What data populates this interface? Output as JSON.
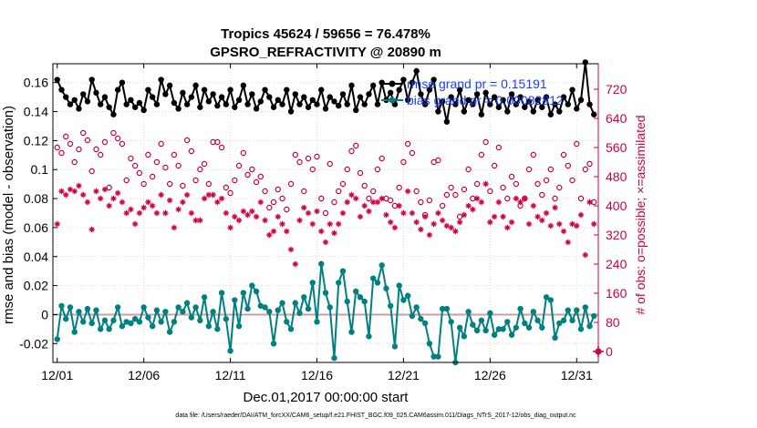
{
  "chart_data": {
    "type": "line",
    "title_line1": "Tropics 45624 / 59656 = 76.478%",
    "title_line2": "GPSRO_REFRACTIVITY @ 20890 m",
    "xlabel": "Dec.01,2017 00:00:00 start",
    "ylabel_left": "rmse and bias (model - observation)",
    "ylabel_right": "# of obs: o=possible; ×=assimilated",
    "footer": "data file: /Users/raeder/DAI/ATM_forcXX/CAM6_setup/f.e21.FHIST_BGC.f09_025.CAM6assim.011/Diags_NTrS_2017-12/obs_diag_output.nc",
    "x_tick_labels": [
      "12/01",
      "12/06",
      "12/11",
      "12/16",
      "12/21",
      "12/26",
      "12/31"
    ],
    "x_tick_days": [
      0,
      5,
      10,
      15,
      20,
      25,
      30
    ],
    "xlim": [
      -0.25,
      31.25
    ],
    "y_left_ticks": [
      "-0.02",
      "0",
      "0.02",
      "0.04",
      "0.06",
      "0.08",
      "0.1",
      "0.12",
      "0.14",
      "0.16"
    ],
    "y_left_tick_values": [
      -0.02,
      0,
      0.02,
      0.04,
      0.06,
      0.08,
      0.1,
      0.12,
      0.14,
      0.16
    ],
    "ylim_left": [
      -0.033,
      0.173
    ],
    "y_right_ticks": [
      "0",
      "80",
      "160",
      "240",
      "320",
      "400",
      "480",
      "560",
      "640",
      "720"
    ],
    "y_right_tick_values": [
      0,
      80,
      160,
      240,
      320,
      400,
      480,
      560,
      640,
      720
    ],
    "ylim_right": [
      -30,
      790
    ],
    "legend": [
      {
        "label": "rmse grand pr = 0.15191",
        "color": "#000000"
      },
      {
        "label": "bias grand pr = 0.00082812",
        "color": "#008080"
      }
    ],
    "colors": {
      "rmse": "#000000",
      "bias": "#008080",
      "counts": "#cc0044",
      "zero_line": "#c8a0a0"
    },
    "series": [
      {
        "name": "rmse",
        "axis": "left",
        "marker": "filled-circle",
        "x": [
          0,
          0.25,
          0.5,
          0.75,
          1,
          1.25,
          1.5,
          1.75,
          2,
          2.25,
          2.5,
          2.75,
          3,
          3.25,
          3.5,
          3.75,
          4,
          4.25,
          4.5,
          4.75,
          5,
          5.25,
          5.5,
          5.75,
          6,
          6.25,
          6.5,
          6.75,
          7,
          7.25,
          7.5,
          7.75,
          8,
          8.25,
          8.5,
          8.75,
          9,
          9.25,
          9.5,
          9.75,
          10,
          10.25,
          10.5,
          10.75,
          11,
          11.25,
          11.5,
          11.75,
          12,
          12.25,
          12.5,
          12.75,
          13,
          13.25,
          13.5,
          13.75,
          14,
          14.25,
          14.5,
          14.75,
          15,
          15.25,
          15.5,
          15.75,
          16,
          16.25,
          16.5,
          16.75,
          17,
          17.25,
          17.5,
          17.75,
          18,
          18.25,
          18.5,
          18.75,
          19,
          19.25,
          19.5,
          19.75,
          20,
          20.25,
          20.5,
          20.75,
          21,
          21.25,
          21.5,
          21.75,
          22,
          22.25,
          22.5,
          22.75,
          23,
          23.25,
          23.5,
          23.75,
          24,
          24.25,
          24.5,
          24.75,
          25,
          25.25,
          25.5,
          25.75,
          26,
          26.25,
          26.5,
          26.75,
          27,
          27.25,
          27.5,
          27.75,
          28,
          28.25,
          28.5,
          28.75,
          29,
          29.25,
          29.5,
          29.75,
          30,
          30.25,
          30.5,
          30.75,
          31
        ],
        "y": [
          0.162,
          0.155,
          0.15,
          0.145,
          0.148,
          0.142,
          0.152,
          0.147,
          0.162,
          0.153,
          0.145,
          0.15,
          0.143,
          0.138,
          0.155,
          0.16,
          0.145,
          0.148,
          0.143,
          0.146,
          0.141,
          0.155,
          0.15,
          0.145,
          0.162,
          0.152,
          0.158,
          0.146,
          0.142,
          0.153,
          0.145,
          0.15,
          0.158,
          0.143,
          0.155,
          0.147,
          0.152,
          0.144,
          0.15,
          0.145,
          0.155,
          0.143,
          0.148,
          0.158,
          0.145,
          0.152,
          0.142,
          0.147,
          0.155,
          0.15,
          0.143,
          0.148,
          0.145,
          0.155,
          0.14,
          0.152,
          0.145,
          0.15,
          0.143,
          0.148,
          0.145,
          0.155,
          0.142,
          0.15,
          0.147,
          0.144,
          0.152,
          0.145,
          0.158,
          0.141,
          0.15,
          0.145,
          0.152,
          0.158,
          0.145,
          0.16,
          0.148,
          0.153,
          0.145,
          0.155,
          0.162,
          0.148,
          0.16,
          0.168,
          0.152,
          0.145,
          0.155,
          0.162,
          0.14,
          0.147,
          0.133,
          0.15,
          0.145,
          0.155,
          0.14,
          0.148,
          0.145,
          0.152,
          0.138,
          0.153,
          0.145,
          0.15,
          0.143,
          0.148,
          0.14,
          0.152,
          0.145,
          0.15,
          0.143,
          0.147,
          0.14,
          0.148,
          0.143,
          0.15,
          0.138,
          0.145,
          0.14,
          0.15,
          0.145,
          0.155,
          0.142,
          0.148,
          0.174,
          0.145,
          0.138
        ]
      },
      {
        "name": "bias",
        "axis": "left",
        "marker": "filled-circle",
        "x": [
          0,
          0.25,
          0.5,
          0.75,
          1,
          1.25,
          1.5,
          1.75,
          2,
          2.25,
          2.5,
          2.75,
          3,
          3.25,
          3.5,
          3.75,
          4,
          4.25,
          4.5,
          4.75,
          5,
          5.25,
          5.5,
          5.75,
          6,
          6.25,
          6.5,
          6.75,
          7,
          7.25,
          7.5,
          7.75,
          8,
          8.25,
          8.5,
          8.75,
          9,
          9.25,
          9.5,
          9.75,
          10,
          10.25,
          10.5,
          10.75,
          11,
          11.25,
          11.5,
          11.75,
          12,
          12.25,
          12.5,
          12.75,
          13,
          13.25,
          13.5,
          13.75,
          14,
          14.25,
          14.5,
          14.75,
          15,
          15.25,
          15.5,
          15.75,
          16,
          16.25,
          16.5,
          16.75,
          17,
          17.25,
          17.5,
          17.75,
          18,
          18.25,
          18.5,
          18.75,
          19,
          19.25,
          19.5,
          19.75,
          20,
          20.25,
          20.5,
          20.75,
          21,
          21.25,
          21.5,
          21.75,
          22,
          22.25,
          22.5,
          22.75,
          23,
          23.25,
          23.5,
          23.75,
          24,
          24.25,
          24.5,
          24.75,
          25,
          25.25,
          25.5,
          25.75,
          26,
          26.25,
          26.5,
          26.75,
          27,
          27.25,
          27.5,
          27.75,
          28,
          28.25,
          28.5,
          28.75,
          29,
          29.25,
          29.5,
          29.75,
          30,
          30.25,
          30.5,
          30.75,
          31
        ],
        "y": [
          -0.017,
          0.006,
          -0.003,
          0.005,
          -0.012,
          0.002,
          -0.005,
          0.004,
          -0.006,
          0.003,
          -0.01,
          -0.004,
          -0.01,
          -0.004,
          0.005,
          -0.008,
          -0.005,
          -0.006,
          -0.003,
          -0.005,
          0.005,
          -0.002,
          -0.008,
          0.003,
          -0.005,
          0.002,
          -0.012,
          -0.005,
          0.005,
          0.002,
          0.008,
          -0.002,
          0.005,
          -0.004,
          0.012,
          -0.008,
          0.002,
          -0.01,
          0.015,
          -0.003,
          -0.025,
          0.01,
          -0.008,
          0.015,
          0.004,
          0.02,
          0.016,
          0.006,
          0.005,
          0.002,
          -0.02,
          0.003,
          0.008,
          -0.005,
          -0.01,
          0.008,
          0.001,
          0.012,
          0.004,
          0.022,
          -0.005,
          0.035,
          0.015,
          0.005,
          -0.03,
          0.022,
          0.03,
          0.009,
          -0.012,
          0.016,
          0.012,
          0.009,
          -0.015,
          0.025,
          0.022,
          0.034,
          0.018,
          0.006,
          -0.022,
          0.02,
          0.01,
          0.013,
          -0.001,
          0.005,
          -0.003,
          -0.006,
          -0.02,
          -0.029,
          -0.029,
          0.004,
          0.004,
          -0.005,
          -0.033,
          -0.009,
          -0.015,
          0.002,
          -0.007,
          -0.011,
          -0.004,
          -0.011,
          0.001,
          -0.014,
          -0.01,
          -0.01,
          -0.005,
          -0.014,
          -0.009,
          0.004,
          -0.006,
          -0.009,
          0.002,
          -0.004,
          -0.009,
          0.012,
          0.01,
          -0.016,
          -0.006,
          -0.004,
          0.003,
          -0.004,
          0.003,
          -0.01,
          0.005,
          -0.008,
          -0.001
        ]
      },
      {
        "name": "possible",
        "axis": "right",
        "marker": "open-circle",
        "x": [
          0,
          0.25,
          0.5,
          0.75,
          1,
          1.25,
          1.5,
          1.75,
          2,
          2.25,
          2.5,
          2.75,
          3,
          3.25,
          3.5,
          3.75,
          4,
          4.25,
          4.5,
          4.75,
          5,
          5.25,
          5.5,
          5.75,
          6,
          6.25,
          6.5,
          6.75,
          7,
          7.25,
          7.5,
          7.75,
          8,
          8.25,
          8.5,
          8.75,
          9,
          9.25,
          9.5,
          9.75,
          10,
          10.25,
          10.5,
          10.75,
          11,
          11.25,
          11.5,
          11.75,
          12,
          12.25,
          12.5,
          12.75,
          13,
          13.25,
          13.5,
          13.75,
          14,
          14.25,
          14.5,
          14.75,
          15,
          15.25,
          15.5,
          15.75,
          16,
          16.25,
          16.5,
          16.75,
          17,
          17.25,
          17.5,
          17.75,
          18,
          18.25,
          18.5,
          18.75,
          19,
          19.25,
          19.5,
          19.75,
          20,
          20.25,
          20.5,
          20.75,
          21,
          21.25,
          21.5,
          21.75,
          22,
          22.25,
          22.5,
          22.75,
          23,
          23.25,
          23.5,
          23.75,
          24,
          24.25,
          24.5,
          24.75,
          25,
          25.25,
          25.5,
          25.75,
          26,
          26.25,
          26.5,
          26.75,
          27,
          27.25,
          27.5,
          27.75,
          28,
          28.25,
          28.5,
          28.75,
          29,
          29.25,
          29.5,
          29.75,
          30,
          30.25,
          30.5,
          30.75,
          31
        ],
        "y": [
          560,
          545,
          590,
          570,
          520,
          555,
          600,
          580,
          495,
          555,
          540,
          575,
          450,
          600,
          585,
          570,
          470,
          530,
          510,
          490,
          460,
          540,
          480,
          520,
          570,
          505,
          460,
          540,
          510,
          455,
          580,
          550,
          470,
          500,
          515,
          460,
          575,
          575,
          560,
          450,
          435,
          470,
          510,
          545,
          485,
          500,
          465,
          480,
          440,
          395,
          410,
          445,
          420,
          390,
          460,
          540,
          520,
          440,
          530,
          500,
          535,
          420,
          380,
          515,
          410,
          440,
          460,
          500,
          550,
          565,
          490,
          455,
          420,
          440,
          500,
          530,
          420,
          415,
          400,
          450,
          520,
          570,
          545,
          440,
          410,
          375,
          415,
          520,
          525,
          400,
          430,
          450,
          430,
          370,
          445,
          500,
          420,
          460,
          540,
          575,
          440,
          510,
          560,
          450,
          420,
          480,
          460,
          400,
          420,
          500,
          540,
          460,
          430,
          470,
          500,
          420,
          450,
          540,
          510,
          470,
          570,
          420,
          500,
          515,
          410
        ]
      },
      {
        "name": "assimilated",
        "axis": "right",
        "marker": "asterisk",
        "x": [
          0,
          0.25,
          0.5,
          0.75,
          1,
          1.25,
          1.5,
          1.75,
          2,
          2.25,
          2.5,
          2.75,
          3,
          3.25,
          3.5,
          3.75,
          4,
          4.25,
          4.5,
          4.75,
          5,
          5.25,
          5.5,
          5.75,
          6,
          6.25,
          6.5,
          6.75,
          7,
          7.25,
          7.5,
          7.75,
          8,
          8.25,
          8.5,
          8.75,
          9,
          9.25,
          9.5,
          9.75,
          10,
          10.25,
          10.5,
          10.75,
          11,
          11.25,
          11.5,
          11.75,
          12,
          12.25,
          12.5,
          12.75,
          13,
          13.25,
          13.5,
          13.75,
          14,
          14.25,
          14.5,
          14.75,
          15,
          15.25,
          15.5,
          15.75,
          16,
          16.25,
          16.5,
          16.75,
          17,
          17.25,
          17.5,
          17.75,
          18,
          18.25,
          18.5,
          18.75,
          19,
          19.25,
          19.5,
          19.75,
          20,
          20.25,
          20.5,
          20.75,
          21,
          21.25,
          21.5,
          21.75,
          22,
          22.25,
          22.5,
          22.75,
          23,
          23.25,
          23.5,
          23.75,
          24,
          24.25,
          24.5,
          24.75,
          25,
          25.25,
          25.5,
          25.75,
          26,
          26.25,
          26.5,
          26.75,
          27,
          27.25,
          27.5,
          27.75,
          28,
          28.25,
          28.5,
          28.75,
          29,
          29.25,
          29.5,
          29.75,
          30,
          30.25,
          30.5,
          30.75,
          31
        ],
        "y": [
          350,
          440,
          430,
          445,
          440,
          455,
          430,
          410,
          335,
          440,
          420,
          445,
          400,
          420,
          435,
          410,
          380,
          390,
          350,
          380,
          395,
          410,
          400,
          380,
          430,
          380,
          415,
          340,
          390,
          410,
          430,
          380,
          360,
          360,
          420,
          430,
          430,
          410,
          420,
          380,
          340,
          370,
          360,
          385,
          375,
          385,
          370,
          410,
          360,
          320,
          330,
          370,
          350,
          330,
          280,
          240,
          360,
          395,
          380,
          350,
          385,
          330,
          300,
          350,
          325,
          350,
          380,
          410,
          430,
          420,
          370,
          400,
          385,
          410,
          410,
          420,
          375,
          355,
          340,
          400,
          380,
          440,
          380,
          355,
          335,
          370,
          320,
          350,
          380,
          360,
          345,
          340,
          330,
          355,
          375,
          400,
          390,
          420,
          410,
          460,
          355,
          370,
          410,
          370,
          340,
          355,
          420,
          410,
          420,
          350,
          400,
          370,
          360,
          380,
          345,
          395,
          350,
          330,
          300,
          350,
          345,
          375,
          265,
          410,
          350
        ]
      }
    ],
    "right_axis_marker": {
      "value": 0
    }
  }
}
